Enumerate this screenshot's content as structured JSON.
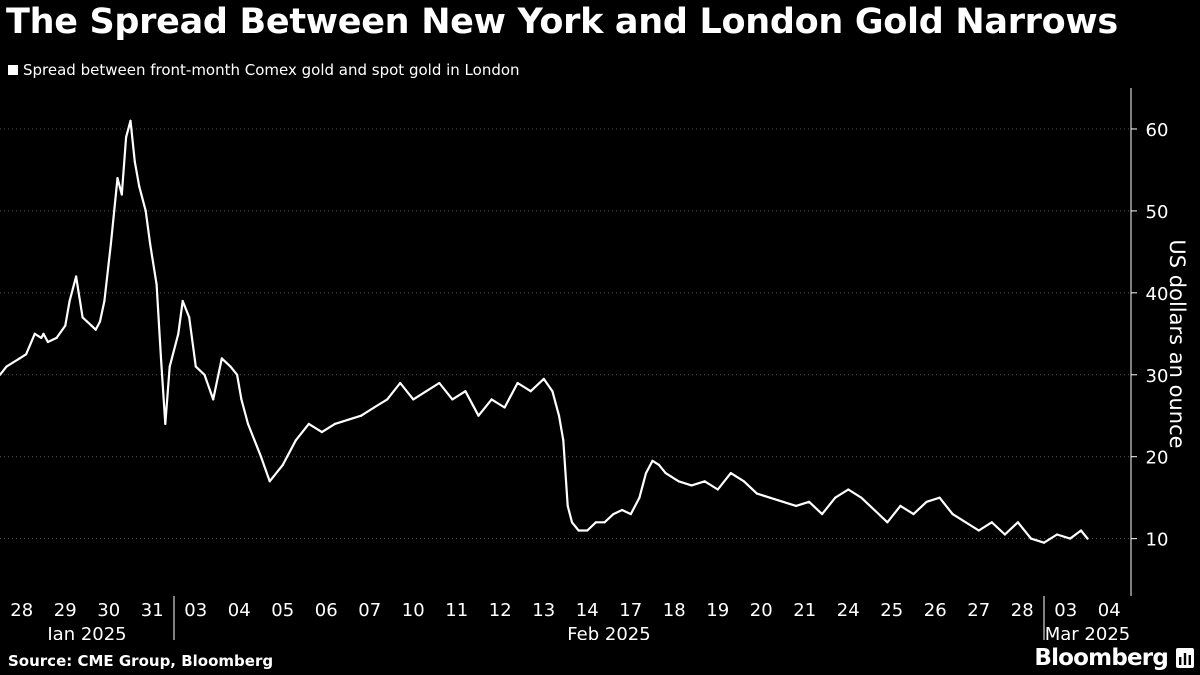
{
  "header": {
    "title": "The Spread Between New York and London Gold Narrows"
  },
  "chart_data": {
    "type": "line",
    "legend": "Spread between front-month Comex gold and spot gold in London",
    "legend_position": "top-left",
    "grid": true,
    "ylabel": "US dollars an ounce",
    "ylim": [
      3,
      65
    ],
    "y_ticks": [
      10,
      20,
      30,
      40,
      50,
      60
    ],
    "x_tick_labels": [
      "28",
      "29",
      "30",
      "31",
      "03",
      "04",
      "05",
      "06",
      "07",
      "10",
      "11",
      "12",
      "13",
      "14",
      "17",
      "18",
      "19",
      "20",
      "21",
      "24",
      "25",
      "26",
      "27",
      "28",
      "03",
      "04"
    ],
    "x_group_labels": [
      "Jan 2025",
      "Feb 2025",
      "Mar 2025"
    ],
    "series": [
      {
        "name": "Spread between front-month Comex gold and spot gold in London",
        "x": [
          0,
          0.15,
          0.3,
          0.45,
          0.6,
          0.8,
          0.95,
          1.0,
          1.1,
          1.3,
          1.5,
          1.6,
          1.75,
          1.9,
          2.0,
          2.1,
          2.2,
          2.3,
          2.4,
          2.55,
          2.7,
          2.8,
          2.9,
          3.0,
          3.1,
          3.2,
          3.35,
          3.45,
          3.6,
          3.7,
          3.8,
          3.9,
          4.1,
          4.2,
          4.35,
          4.5,
          4.7,
          4.9,
          5.1,
          5.3,
          5.45,
          5.55,
          5.7,
          5.85,
          6.0,
          6.2,
          6.5,
          6.8,
          7.1,
          7.4,
          7.7,
          8.0,
          8.3,
          8.6,
          8.9,
          9.2,
          9.5,
          9.8,
          10.1,
          10.4,
          10.7,
          11.0,
          11.3,
          11.6,
          11.9,
          12.2,
          12.5,
          12.7,
          12.85,
          12.95,
          13.05,
          13.15,
          13.3,
          13.5,
          13.7,
          13.9,
          14.1,
          14.3,
          14.5,
          14.7,
          14.85,
          15.0,
          15.15,
          15.3,
          15.6,
          15.9,
          16.2,
          16.5,
          16.8,
          17.1,
          17.4,
          17.7,
          18.0,
          18.3,
          18.6,
          18.9,
          19.2,
          19.5,
          19.8,
          20.1,
          20.4,
          20.7,
          21.0,
          21.3,
          21.6,
          21.9,
          22.2,
          22.5,
          22.8,
          23.1,
          23.4,
          23.7,
          24.0,
          24.3,
          24.6,
          24.85,
          25.0
        ],
        "values": [
          30,
          31,
          31.5,
          32,
          32.5,
          35,
          34.5,
          35,
          34,
          34.5,
          36,
          39,
          42,
          37,
          36.5,
          36,
          35.5,
          36.5,
          39,
          46,
          54,
          52,
          59,
          61,
          56,
          53,
          50,
          46,
          41,
          32,
          24,
          31,
          35,
          39,
          37,
          31,
          30,
          27,
          32,
          31,
          30,
          27,
          24,
          22,
          20,
          17,
          19,
          22,
          24,
          23,
          24,
          24.5,
          25,
          26,
          27,
          29,
          27,
          28,
          29,
          27,
          28,
          25,
          27,
          26,
          29,
          28,
          29.5,
          28,
          25,
          22,
          14,
          12,
          11,
          11,
          12,
          12,
          13,
          13.5,
          13,
          15,
          18,
          19.5,
          19,
          18,
          17,
          16.5,
          17,
          16,
          18,
          17,
          15.5,
          15,
          14.5,
          14,
          14.5,
          13,
          15,
          16,
          15,
          13.5,
          12,
          14,
          13,
          14.5,
          15,
          13,
          12,
          11,
          12,
          10.5,
          12,
          10,
          9.5,
          10.5,
          10,
          11,
          10
        ]
      }
    ],
    "colors": {
      "background": "#000000",
      "line": "#ffffff",
      "grid": "#555555"
    }
  },
  "footer": {
    "source": "Source: CME Group, Bloomberg",
    "brand": "Bloomberg"
  }
}
